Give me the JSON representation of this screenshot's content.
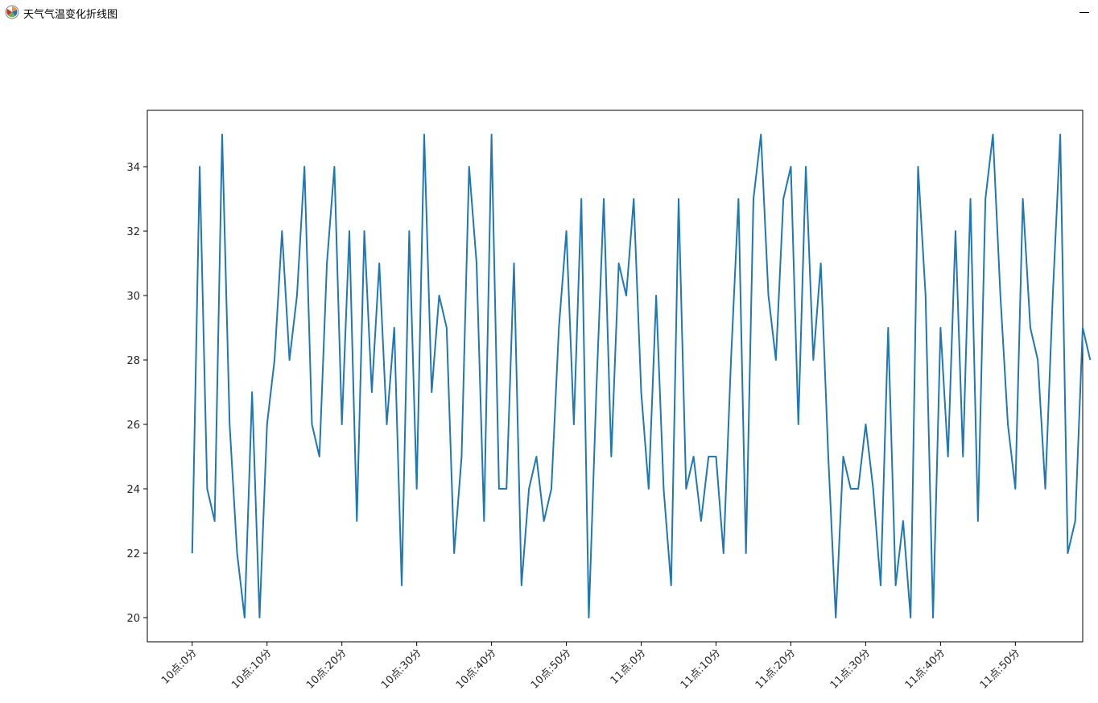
{
  "window": {
    "title": "天气气温变化折线图",
    "minimize_icon": "minimize-icon",
    "app_icon": "matplotlib-icon"
  },
  "chart_data": {
    "type": "line",
    "title": "",
    "xlabel": "",
    "ylabel": "",
    "x_tick_labels": [
      "10点:0分",
      "10点:10分",
      "10点:20分",
      "10点:30分",
      "10点:40分",
      "10点:50分",
      "11点:0分",
      "11点:10分",
      "11点:20分",
      "11点:30分",
      "11点:40分",
      "11点:50分"
    ],
    "x_tick_step": 10,
    "y_ticks": [
      20,
      22,
      24,
      26,
      28,
      30,
      32,
      34
    ],
    "xlim": [
      -6,
      119
    ],
    "ylim": [
      19.25,
      35.75
    ],
    "grid": false,
    "line_color": "#1f77b4",
    "series": [
      {
        "values": [
          22,
          34,
          24,
          23,
          35,
          26,
          22,
          20,
          27,
          20,
          26,
          28,
          32,
          28,
          30,
          34,
          26,
          25,
          31,
          34,
          26,
          32,
          23,
          32,
          27,
          31,
          26,
          29,
          21,
          32,
          24,
          35,
          27,
          30,
          29,
          22,
          25,
          34,
          31,
          23,
          35,
          24,
          24,
          31,
          21,
          24,
          25,
          23,
          24,
          29,
          32,
          26,
          33,
          20,
          27,
          33,
          25,
          31,
          30,
          33,
          27,
          24,
          30,
          24,
          21,
          33,
          24,
          25,
          23,
          25,
          25,
          22,
          28,
          33,
          22,
          33,
          35,
          30,
          28,
          33,
          34,
          26,
          34,
          28,
          31,
          25,
          20,
          25,
          24,
          24,
          26,
          24,
          21,
          29,
          21,
          23,
          20,
          34,
          30,
          20,
          29,
          25,
          32,
          25,
          33,
          23,
          33,
          35,
          30,
          26,
          24,
          33,
          29,
          28,
          24,
          30,
          35,
          22,
          23,
          29,
          28
        ]
      }
    ]
  }
}
